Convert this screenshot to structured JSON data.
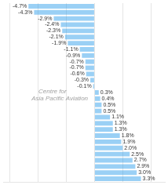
{
  "chart_data": {
    "type": "bar",
    "orientation": "horizontal",
    "categories": [
      null,
      null,
      null,
      null,
      null,
      null,
      null,
      null,
      null,
      null,
      null,
      null,
      null,
      null,
      null,
      null,
      null,
      null,
      null,
      null,
      null,
      null,
      null,
      null,
      null,
      null,
      null,
      null,
      null
    ],
    "values": [
      -4.7,
      -4.3,
      -2.9,
      -2.4,
      -2.3,
      -2.1,
      -1.9,
      -1.05,
      -0.9,
      -0.65,
      -0.65,
      -0.6,
      -0.3,
      -0.1,
      0.3,
      0.4,
      0.5,
      0.5,
      1.1,
      1.3,
      1.3,
      1.8,
      1.9,
      2.0,
      2.5,
      2.7,
      2.9,
      3.0,
      3.3
    ],
    "value_labels": [
      "-4.7%",
      "-4.3%",
      "-2.9%",
      "-2.4%",
      "-2.3%",
      "-2.1%",
      "-1.9%",
      "-1.1%",
      "-0.9%",
      "-0.7%",
      "-0.7%",
      "-0.6%",
      "-0.3%",
      "-0.1%",
      "0.3%",
      "0.4%",
      "0.5%",
      "0.5%",
      "1.1%",
      "1.3%",
      "1.3%",
      "1.8%",
      "1.9%",
      "2.0%",
      "2.5%",
      "2.7%",
      "2.9%",
      "3.0%",
      "3.3%"
    ],
    "data_labels": true,
    "annotations": [
      "Centre for",
      "Asia Pacific Aviation"
    ],
    "xlim": [
      -6.5,
      5.0
    ],
    "xticks": [
      -6,
      -4,
      -2,
      0,
      2,
      4
    ],
    "grid": true,
    "tick_labels": false
  }
}
